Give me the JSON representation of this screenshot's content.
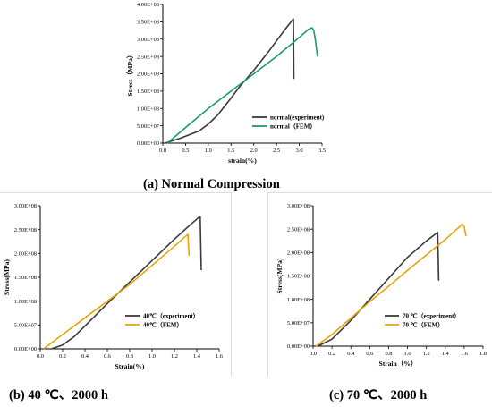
{
  "captions": {
    "a": "(a) Normal Compression",
    "b": "(b) 40 ℃、2000 h",
    "c": "(c) 70 ℃、2000 h"
  },
  "chart_data": [
    {
      "id": "a",
      "type": "line",
      "xlabel": "strain(%)",
      "ylabel": "Stress（MPa）",
      "xlim": [
        0,
        3.5
      ],
      "ylim": [
        0,
        400000000
      ],
      "xticks": [
        "0.0",
        "0.5",
        "1.0",
        "1.5",
        "2.0",
        "2.5",
        "3.0",
        "3.5"
      ],
      "xtick_values": [
        0,
        0.5,
        1.0,
        1.5,
        2.0,
        2.5,
        3.0,
        3.5
      ],
      "yticks": [
        "0.00E+00",
        "5.00E+07",
        "1.00E+08",
        "1.50E+08",
        "2.00E+08",
        "2.50E+08",
        "3.00E+08",
        "3.50E+08",
        "4.00E+08"
      ],
      "ytick_values": [
        0,
        50000000,
        100000000,
        150000000,
        200000000,
        250000000,
        300000000,
        350000000,
        400000000
      ],
      "legend_position": "lower-right",
      "series": [
        {
          "name": "normal(experiment)",
          "color": "#3a3a3a",
          "x": [
            0.05,
            0.4,
            0.8,
            1.0,
            1.2,
            1.5,
            1.7,
            2.0,
            2.3,
            2.5,
            2.7,
            2.85,
            2.87,
            2.88
          ],
          "y": [
            0,
            15000000,
            35000000,
            55000000,
            80000000,
            130000000,
            165000000,
            210000000,
            260000000,
            295000000,
            330000000,
            355000000,
            358000000,
            185000000
          ]
        },
        {
          "name": "normal（FEM）",
          "color": "#1a9c6e",
          "x": [
            0.1,
            0.5,
            1.0,
            1.5,
            2.0,
            2.5,
            3.0,
            3.2,
            3.28,
            3.32,
            3.35,
            3.4
          ],
          "y": [
            0,
            45000000,
            100000000,
            150000000,
            200000000,
            250000000,
            305000000,
            328000000,
            333000000,
            325000000,
            300000000,
            250000000
          ]
        }
      ]
    },
    {
      "id": "b",
      "type": "line",
      "xlabel": "Strain(%)",
      "ylabel": "Stress(MPa)",
      "xlim": [
        0,
        1.6
      ],
      "ylim": [
        0,
        300000000
      ],
      "xticks": [
        "0.0",
        "0.2",
        "0.4",
        "0.6",
        "0.8",
        "1.0",
        "1.2",
        "1.4",
        "1.6"
      ],
      "xtick_values": [
        0,
        0.2,
        0.4,
        0.6,
        0.8,
        1.0,
        1.2,
        1.4,
        1.6
      ],
      "yticks": [
        "0.00E+00",
        "5.00E+07",
        "1.00E+08",
        "1.50E+08",
        "2.00E+08",
        "2.50E+08",
        "3.00E+08"
      ],
      "ytick_values": [
        0,
        50000000,
        100000000,
        150000000,
        200000000,
        250000000,
        300000000
      ],
      "legend_position": "lower-right",
      "series": [
        {
          "name": "40℃（experiment）",
          "color": "#3a3a3a",
          "x": [
            0.1,
            0.2,
            0.3,
            0.4,
            0.6,
            0.8,
            1.0,
            1.2,
            1.35,
            1.42,
            1.43,
            1.44
          ],
          "y": [
            0,
            8000000,
            25000000,
            48000000,
            95000000,
            140000000,
            185000000,
            230000000,
            262000000,
            276000000,
            277000000,
            165000000
          ]
        },
        {
          "name": "40℃（FEM）",
          "color": "#e8a50b",
          "x": [
            0.03,
            0.2,
            0.4,
            0.6,
            0.8,
            1.0,
            1.2,
            1.28,
            1.31,
            1.32,
            1.33
          ],
          "y": [
            0,
            30000000,
            65000000,
            100000000,
            135000000,
            175000000,
            215000000,
            232000000,
            238000000,
            240000000,
            195000000
          ]
        }
      ]
    },
    {
      "id": "c",
      "type": "line",
      "xlabel": "Strain（%）",
      "ylabel": "Stress(MPa)",
      "xlim": [
        0,
        1.8
      ],
      "ylim": [
        0,
        300000000
      ],
      "xticks": [
        "0.0",
        "0.2",
        "0.4",
        "0.6",
        "0.8",
        "1.0",
        "1.2",
        "1.4",
        "1.6",
        "1.8"
      ],
      "xtick_values": [
        0,
        0.2,
        0.4,
        0.6,
        0.8,
        1.0,
        1.2,
        1.4,
        1.6,
        1.8
      ],
      "yticks": [
        "0.00E+00",
        "5.00E+07",
        "1.00E+08",
        "1.50E+08",
        "2.00E+08",
        "2.50E+08",
        "3.00E+08"
      ],
      "ytick_values": [
        0,
        50000000,
        100000000,
        150000000,
        200000000,
        250000000,
        300000000
      ],
      "legend_position": "lower-right",
      "series": [
        {
          "name": "70 ℃（experiment）",
          "color": "#3a3a3a",
          "x": [
            0.05,
            0.2,
            0.4,
            0.6,
            0.8,
            1.0,
            1.2,
            1.3,
            1.32,
            1.33
          ],
          "y": [
            0,
            15000000,
            55000000,
            100000000,
            145000000,
            190000000,
            225000000,
            240000000,
            243000000,
            140000000
          ]
        },
        {
          "name": "70 ℃（FEM）",
          "color": "#e8a50b",
          "x": [
            0.03,
            0.2,
            0.4,
            0.6,
            0.8,
            1.0,
            1.2,
            1.4,
            1.55,
            1.58,
            1.6,
            1.62
          ],
          "y": [
            0,
            25000000,
            60000000,
            95000000,
            128000000,
            162000000,
            195000000,
            228000000,
            255000000,
            261000000,
            255000000,
            235000000
          ]
        }
      ]
    }
  ]
}
